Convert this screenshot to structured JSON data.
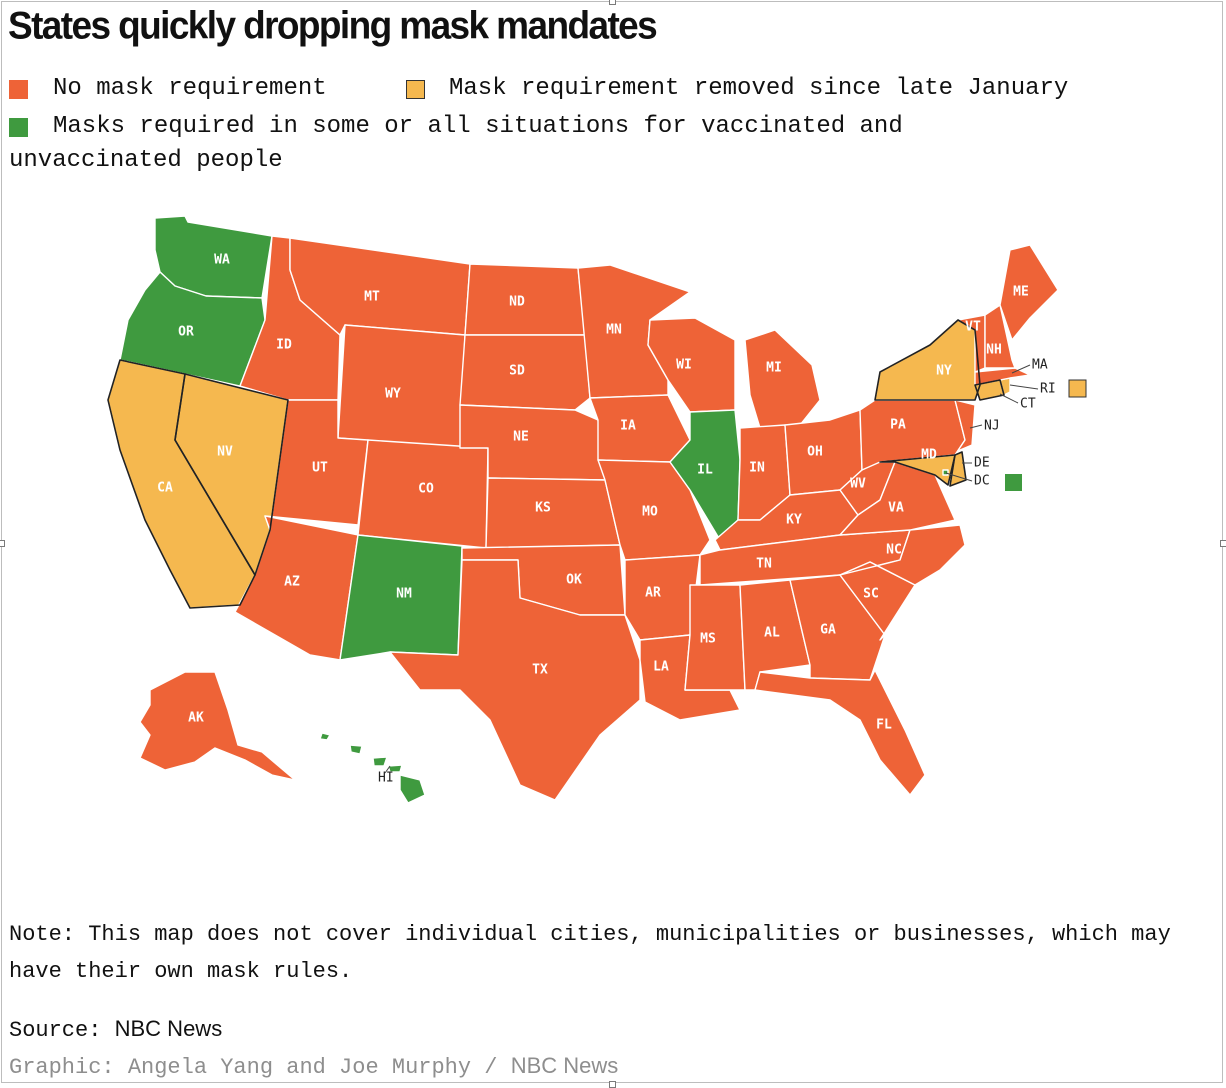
{
  "title": "States quickly dropping mask mandates",
  "colors": {
    "no_mask": "#ee6337",
    "removed": "#f5b84f",
    "required": "#3f9a3f",
    "border": "#ffffff",
    "label": "#ffffff"
  },
  "legend": [
    {
      "key": "no_mask",
      "label": "No mask requirement"
    },
    {
      "key": "removed",
      "label": "Mask requirement removed since late January"
    },
    {
      "key": "required",
      "label": "Masks required in some or all situations for vaccinated and unvaccinated people"
    }
  ],
  "states": {
    "WA": "required",
    "OR": "required",
    "CA": "removed",
    "NV": "removed",
    "ID": "no_mask",
    "MT": "no_mask",
    "WY": "no_mask",
    "UT": "no_mask",
    "AZ": "no_mask",
    "CO": "no_mask",
    "NM": "required",
    "ND": "no_mask",
    "SD": "no_mask",
    "NE": "no_mask",
    "KS": "no_mask",
    "OK": "no_mask",
    "TX": "no_mask",
    "MN": "no_mask",
    "IA": "no_mask",
    "MO": "no_mask",
    "AR": "no_mask",
    "LA": "no_mask",
    "WI": "no_mask",
    "IL": "required",
    "MS": "no_mask",
    "MI": "no_mask",
    "IN": "no_mask",
    "KY": "no_mask",
    "TN": "no_mask",
    "AL": "no_mask",
    "OH": "no_mask",
    "WV": "no_mask",
    "GA": "no_mask",
    "FL": "no_mask",
    "SC": "no_mask",
    "NC": "no_mask",
    "VA": "no_mask",
    "PA": "no_mask",
    "NY": "removed",
    "NJ": "no_mask",
    "DE": "removed",
    "MD": "removed",
    "DC": "required",
    "CT": "removed",
    "RI": "removed",
    "MA": "no_mask",
    "VT": "no_mask",
    "NH": "no_mask",
    "ME": "no_mask",
    "AK": "no_mask",
    "HI": "required"
  },
  "note": "Note: This map does not cover individual cities, municipalities or businesses, which may have their own mask rules.",
  "source_prefix": "Source:",
  "source_name": "NBC News",
  "credit_prefix": "Graphic: Angela Yang and Joe Murphy /",
  "credit_name": "NBC News"
}
